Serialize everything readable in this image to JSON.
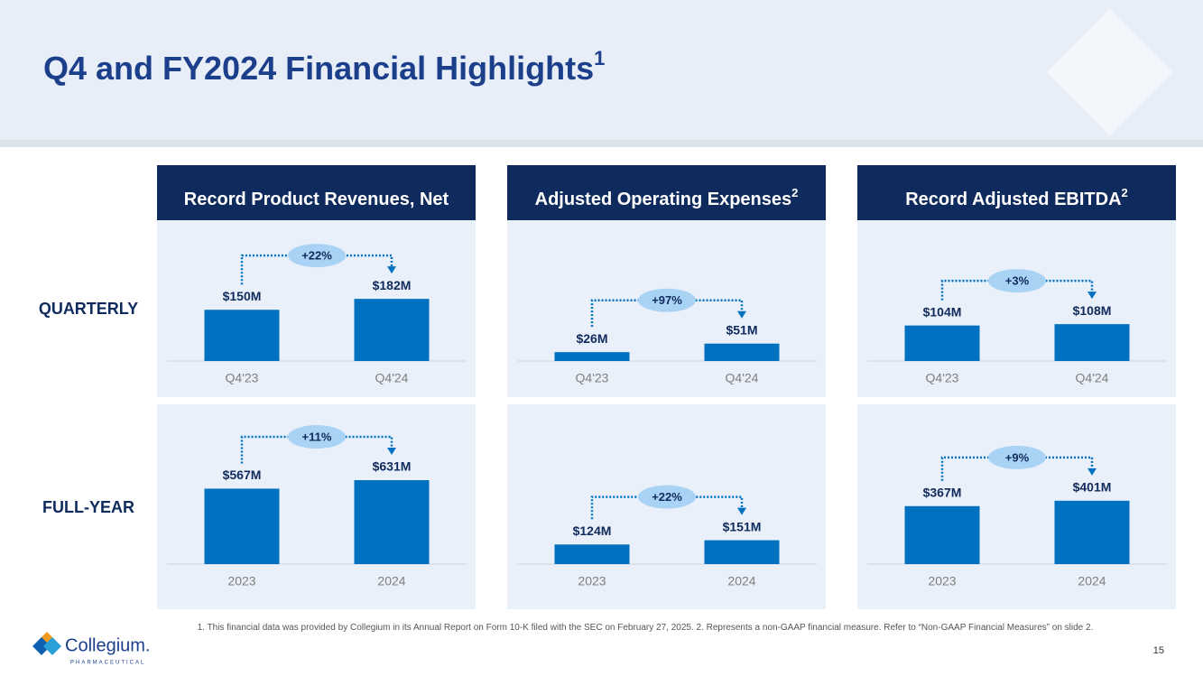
{
  "title": "Q4 and FY2024 Financial Highlights",
  "title_note": "1",
  "panels": [
    {
      "title": "Record Product Revenues, Net"
    },
    {
      "title": "Adjusted Operating Expenses",
      "note": "2"
    },
    {
      "title": "Record Adjusted EBITDA",
      "note": "2"
    }
  ],
  "rows": [
    "QUARTERLY",
    "FULL-YEAR"
  ],
  "footnote": "1. This financial data was provided by Collegium in its Annual Report on Form 10-K filed with the SEC on February 27, 2025. 2. Represents a non-GAAP financial measure. Refer to “Non-GAAP Financial Measures” on slide 2.",
  "page_number": "15",
  "logo": {
    "name": "Collegium.",
    "tagline": "PHARMACEUTICAL"
  },
  "chart_data": [
    {
      "type": "bar",
      "categories": [
        "Q4'23",
        "Q4'24"
      ],
      "values": [
        150,
        182
      ],
      "value_labels": [
        "$150M",
        "$182M"
      ],
      "change": "+22%",
      "color": "#0070c0",
      "ylim": [
        0,
        370
      ]
    },
    {
      "type": "bar",
      "categories": [
        "Q4'23",
        "Q4'24"
      ],
      "values": [
        26,
        51
      ],
      "value_labels": [
        "$26M",
        "$51M"
      ],
      "change": "+97%",
      "color": "#0070c0",
      "ylim": [
        0,
        370
      ]
    },
    {
      "type": "bar",
      "categories": [
        "Q4'23",
        "Q4'24"
      ],
      "values": [
        104,
        108
      ],
      "value_labels": [
        "$104M",
        "$108M"
      ],
      "change": "+3%",
      "color": "#0070c0",
      "ylim": [
        0,
        370
      ]
    },
    {
      "type": "bar",
      "categories": [
        "2023",
        "2024"
      ],
      "values": [
        567,
        631
      ],
      "value_labels": [
        "$567M",
        "$631M"
      ],
      "change": "+11%",
      "color": "#0070c0",
      "ylim": [
        0,
        950
      ]
    },
    {
      "type": "bar",
      "categories": [
        "2023",
        "2024"
      ],
      "values": [
        124,
        151
      ],
      "value_labels": [
        "$124M",
        "$151M"
      ],
      "change": "+22%",
      "color": "#0070c0",
      "ylim": [
        0,
        800
      ]
    },
    {
      "type": "bar",
      "categories": [
        "2023",
        "2024"
      ],
      "values": [
        367,
        401
      ],
      "value_labels": [
        "$367M",
        "$401M"
      ],
      "change": "+9%",
      "color": "#0070c0",
      "ylim": [
        0,
        800
      ]
    }
  ]
}
